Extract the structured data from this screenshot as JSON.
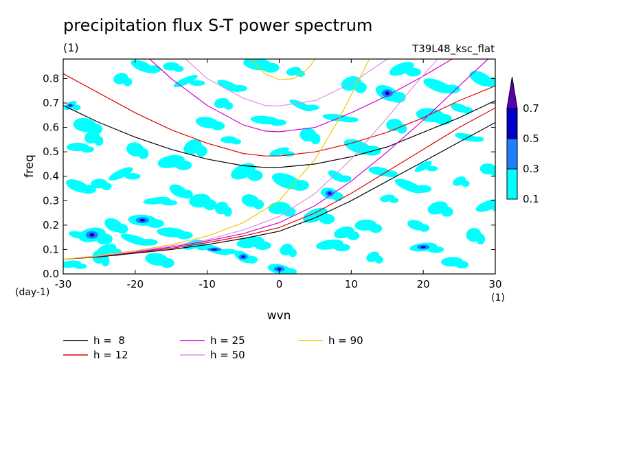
{
  "title": "precipitation flux S-T power spectrum",
  "units_label": "(1)",
  "experiment": "T39L48_ksc_flat",
  "chart_data": {
    "type": "heatmap",
    "title": "precipitation flux S-T power spectrum",
    "xlabel": "wvn",
    "ylabel": "freq",
    "x_unit": "(1)",
    "y_unit": "(day-1)",
    "xlim": [
      -30,
      30
    ],
    "ylim": [
      0,
      0.88
    ],
    "x_ticks": [
      -30,
      -20,
      -10,
      0,
      10,
      20,
      30
    ],
    "y_ticks": [
      0.0,
      0.1,
      0.2,
      0.3,
      0.4,
      0.5,
      0.6,
      0.7,
      0.8
    ],
    "x_tick_labels": [
      "-30",
      "-20",
      "-10",
      "0",
      "10",
      "20",
      "30"
    ],
    "y_tick_labels": [
      "0.0",
      "0.1",
      "0.2",
      "0.3",
      "0.4",
      "0.5",
      "0.6",
      "0.7",
      "0.8"
    ],
    "colorbar": {
      "levels": [
        0.1,
        0.3,
        0.5,
        0.7
      ],
      "level_labels": [
        "0.1",
        "0.3",
        "0.5",
        "0.7"
      ],
      "colors": [
        "#00ffff",
        "#1e7fff",
        "#0000c8",
        "#5a00b4"
      ]
    },
    "dispersion_curves": [
      {
        "label": "h =  8",
        "h": 8,
        "color": "#000000",
        "upper": [
          [
            -30,
            0.69
          ],
          [
            -25,
            0.62
          ],
          [
            -20,
            0.56
          ],
          [
            -15,
            0.51
          ],
          [
            -10,
            0.47
          ],
          [
            -5,
            0.443
          ],
          [
            -2,
            0.436
          ],
          [
            0,
            0.436
          ],
          [
            5,
            0.45
          ],
          [
            10,
            0.48
          ],
          [
            15,
            0.52
          ],
          [
            20,
            0.58
          ],
          [
            25,
            0.64
          ],
          [
            30,
            0.71
          ]
        ],
        "lower": [
          [
            -30,
            0.06
          ],
          [
            -25,
            0.07
          ],
          [
            -20,
            0.085
          ],
          [
            -15,
            0.1
          ],
          [
            -10,
            0.12
          ],
          [
            -5,
            0.145
          ],
          [
            0,
            0.175
          ],
          [
            5,
            0.23
          ],
          [
            10,
            0.3
          ],
          [
            15,
            0.38
          ],
          [
            20,
            0.46
          ],
          [
            25,
            0.54
          ],
          [
            30,
            0.62
          ]
        ]
      },
      {
        "label": "h = 12",
        "h": 12,
        "color": "#e00000",
        "upper": [
          [
            -30,
            0.82
          ],
          [
            -25,
            0.74
          ],
          [
            -20,
            0.66
          ],
          [
            -15,
            0.59
          ],
          [
            -10,
            0.535
          ],
          [
            -5,
            0.493
          ],
          [
            -2,
            0.483
          ],
          [
            0,
            0.483
          ],
          [
            5,
            0.5
          ],
          [
            10,
            0.535
          ],
          [
            15,
            0.58
          ],
          [
            20,
            0.64
          ],
          [
            25,
            0.71
          ],
          [
            30,
            0.77
          ]
        ],
        "lower": [
          [
            -30,
            0.06
          ],
          [
            -25,
            0.072
          ],
          [
            -20,
            0.088
          ],
          [
            -15,
            0.105
          ],
          [
            -10,
            0.128
          ],
          [
            -5,
            0.155
          ],
          [
            0,
            0.19
          ],
          [
            5,
            0.25
          ],
          [
            10,
            0.33
          ],
          [
            15,
            0.42
          ],
          [
            20,
            0.51
          ],
          [
            25,
            0.6
          ],
          [
            30,
            0.68
          ]
        ]
      },
      {
        "label": "h = 25",
        "h": 25,
        "color": "#d000d0",
        "upper": [
          [
            -18,
            0.88
          ],
          [
            -15,
            0.8
          ],
          [
            -10,
            0.69
          ],
          [
            -5,
            0.61
          ],
          [
            -2,
            0.585
          ],
          [
            0,
            0.582
          ],
          [
            5,
            0.6
          ],
          [
            10,
            0.66
          ],
          [
            15,
            0.73
          ],
          [
            20,
            0.81
          ],
          [
            24,
            0.88
          ]
        ],
        "lower": [
          [
            -30,
            0.06
          ],
          [
            -25,
            0.073
          ],
          [
            -20,
            0.09
          ],
          [
            -15,
            0.11
          ],
          [
            -10,
            0.135
          ],
          [
            -5,
            0.165
          ],
          [
            0,
            0.21
          ],
          [
            5,
            0.28
          ],
          [
            10,
            0.38
          ],
          [
            15,
            0.5
          ],
          [
            20,
            0.63
          ],
          [
            25,
            0.77
          ],
          [
            29,
            0.88
          ]
        ]
      },
      {
        "label": "h = 50",
        "h": 50,
        "color": "#e090e0",
        "upper": [
          [
            -13,
            0.88
          ],
          [
            -10,
            0.8
          ],
          [
            -5,
            0.72
          ],
          [
            -2,
            0.69
          ],
          [
            0,
            0.688
          ],
          [
            5,
            0.71
          ],
          [
            10,
            0.78
          ],
          [
            13,
            0.84
          ],
          [
            15,
            0.88
          ]
        ],
        "lower": [
          [
            -30,
            0.06
          ],
          [
            -25,
            0.074
          ],
          [
            -20,
            0.092
          ],
          [
            -15,
            0.115
          ],
          [
            -10,
            0.14
          ],
          [
            -5,
            0.18
          ],
          [
            0,
            0.235
          ],
          [
            5,
            0.33
          ],
          [
            10,
            0.47
          ],
          [
            15,
            0.64
          ],
          [
            19,
            0.78
          ],
          [
            22,
            0.88
          ]
        ]
      },
      {
        "label": "h = 90",
        "h": 90,
        "color": "#f0c800",
        "upper": [
          [
            -4,
            0.88
          ],
          [
            -2,
            0.82
          ],
          [
            0,
            0.795
          ],
          [
            2,
            0.8
          ],
          [
            4,
            0.84
          ],
          [
            5,
            0.88
          ]
        ],
        "lower": [
          [
            -30,
            0.06
          ],
          [
            -25,
            0.075
          ],
          [
            -20,
            0.095
          ],
          [
            -15,
            0.12
          ],
          [
            -10,
            0.155
          ],
          [
            -5,
            0.21
          ],
          [
            0,
            0.3
          ],
          [
            5,
            0.47
          ],
          [
            8,
            0.62
          ],
          [
            11,
            0.79
          ],
          [
            12.5,
            0.88
          ]
        ]
      }
    ],
    "spectrum_patches": [
      {
        "x": -29,
        "y": 0.69,
        "level": 1
      },
      {
        "x": -27,
        "y": 0.61,
        "level": 0
      },
      {
        "x": -26,
        "y": 0.56,
        "level": 0
      },
      {
        "x": -28,
        "y": 0.36,
        "level": 0
      },
      {
        "x": -25,
        "y": 0.37,
        "level": 0
      },
      {
        "x": -22,
        "y": 0.41,
        "level": 0
      },
      {
        "x": -28,
        "y": 0.16,
        "level": 0
      },
      {
        "x": -26,
        "y": 0.16,
        "level": 1
      },
      {
        "x": -23,
        "y": 0.2,
        "level": 0
      },
      {
        "x": -19,
        "y": 0.22,
        "level": 1
      },
      {
        "x": -24,
        "y": 0.1,
        "level": 0
      },
      {
        "x": -20,
        "y": 0.14,
        "level": 0
      },
      {
        "x": -29,
        "y": 0.04,
        "level": 0
      },
      {
        "x": -25,
        "y": 0.07,
        "level": 0
      },
      {
        "x": -17,
        "y": 0.06,
        "level": 0
      },
      {
        "x": -22,
        "y": 0.8,
        "level": 0
      },
      {
        "x": -19,
        "y": 0.85,
        "level": 0
      },
      {
        "x": -15,
        "y": 0.85,
        "level": 0
      },
      {
        "x": -13,
        "y": 0.79,
        "level": 0
      },
      {
        "x": -20,
        "y": 0.51,
        "level": 0
      },
      {
        "x": -15,
        "y": 0.46,
        "level": 0
      },
      {
        "x": -14,
        "y": 0.34,
        "level": 0
      },
      {
        "x": -15,
        "y": 0.17,
        "level": 0
      },
      {
        "x": -12,
        "y": 0.12,
        "level": 0
      },
      {
        "x": -9,
        "y": 0.1,
        "level": 1
      },
      {
        "x": -11,
        "y": 0.3,
        "level": 0
      },
      {
        "x": -8,
        "y": 0.27,
        "level": 0
      },
      {
        "x": -10,
        "y": 0.62,
        "level": 0
      },
      {
        "x": -8,
        "y": 0.7,
        "level": 0
      },
      {
        "x": -7,
        "y": 0.77,
        "level": 0
      },
      {
        "x": -7,
        "y": 0.55,
        "level": 0
      },
      {
        "x": -5,
        "y": 0.42,
        "level": 0
      },
      {
        "x": -4,
        "y": 0.3,
        "level": 0
      },
      {
        "x": -4,
        "y": 0.13,
        "level": 0
      },
      {
        "x": -5,
        "y": 0.07,
        "level": 1
      },
      {
        "x": -2,
        "y": 0.63,
        "level": 0
      },
      {
        "x": 0,
        "y": 0.5,
        "level": 0
      },
      {
        "x": 1,
        "y": 0.38,
        "level": 0
      },
      {
        "x": 0,
        "y": 0.27,
        "level": 0
      },
      {
        "x": 1,
        "y": 0.1,
        "level": 0
      },
      {
        "x": 0,
        "y": 0.02,
        "level": 1
      },
      {
        "x": 2,
        "y": 0.83,
        "level": 0
      },
      {
        "x": 3,
        "y": 0.69,
        "level": 0
      },
      {
        "x": 4,
        "y": 0.57,
        "level": 0
      },
      {
        "x": 5,
        "y": 0.24,
        "level": 0
      },
      {
        "x": 7,
        "y": 0.33,
        "level": 1
      },
      {
        "x": 7,
        "y": 0.12,
        "level": 0
      },
      {
        "x": 8,
        "y": 0.4,
        "level": 0
      },
      {
        "x": 8,
        "y": 0.64,
        "level": 0
      },
      {
        "x": 10,
        "y": 0.78,
        "level": 0
      },
      {
        "x": 11,
        "y": 0.52,
        "level": 0
      },
      {
        "x": 12,
        "y": 0.2,
        "level": 0
      },
      {
        "x": 13,
        "y": 0.07,
        "level": 0
      },
      {
        "x": 14,
        "y": 0.42,
        "level": 0
      },
      {
        "x": 15,
        "y": 0.31,
        "level": 0
      },
      {
        "x": 15,
        "y": 0.74,
        "level": 1
      },
      {
        "x": 16,
        "y": 0.61,
        "level": 0
      },
      {
        "x": 17,
        "y": 0.84,
        "level": 0
      },
      {
        "x": 19,
        "y": 0.2,
        "level": 0
      },
      {
        "x": 20,
        "y": 0.11,
        "level": 1
      },
      {
        "x": 20,
        "y": 0.44,
        "level": 0
      },
      {
        "x": 21,
        "y": 0.65,
        "level": 0
      },
      {
        "x": 22,
        "y": 0.27,
        "level": 0
      },
      {
        "x": 22,
        "y": 0.77,
        "level": 0
      },
      {
        "x": 24,
        "y": 0.05,
        "level": 0
      },
      {
        "x": 25,
        "y": 0.38,
        "level": 0
      },
      {
        "x": 26,
        "y": 0.56,
        "level": 0
      },
      {
        "x": 27,
        "y": 0.16,
        "level": 0
      },
      {
        "x": 28,
        "y": 0.8,
        "level": 0
      },
      {
        "x": 29,
        "y": 0.43,
        "level": 0
      },
      {
        "x": 29,
        "y": 0.28,
        "level": 0
      },
      {
        "x": 25,
        "y": 0.68,
        "level": 0
      },
      {
        "x": -17,
        "y": 0.3,
        "level": 0
      },
      {
        "x": -12,
        "y": 0.52,
        "level": 0
      },
      {
        "x": -3,
        "y": 0.86,
        "level": 0
      },
      {
        "x": 9,
        "y": 0.17,
        "level": 0
      },
      {
        "x": 18,
        "y": 0.36,
        "level": 0
      },
      {
        "x": -28,
        "y": 0.52,
        "level": 0
      }
    ]
  },
  "legend": [
    {
      "label": "h =  8",
      "color": "#000000"
    },
    {
      "label": "h = 12",
      "color": "#e00000"
    },
    {
      "label": "h = 25",
      "color": "#d000d0"
    },
    {
      "label": "h = 50",
      "color": "#e090e0"
    },
    {
      "label": "h = 90",
      "color": "#f0c800"
    }
  ]
}
